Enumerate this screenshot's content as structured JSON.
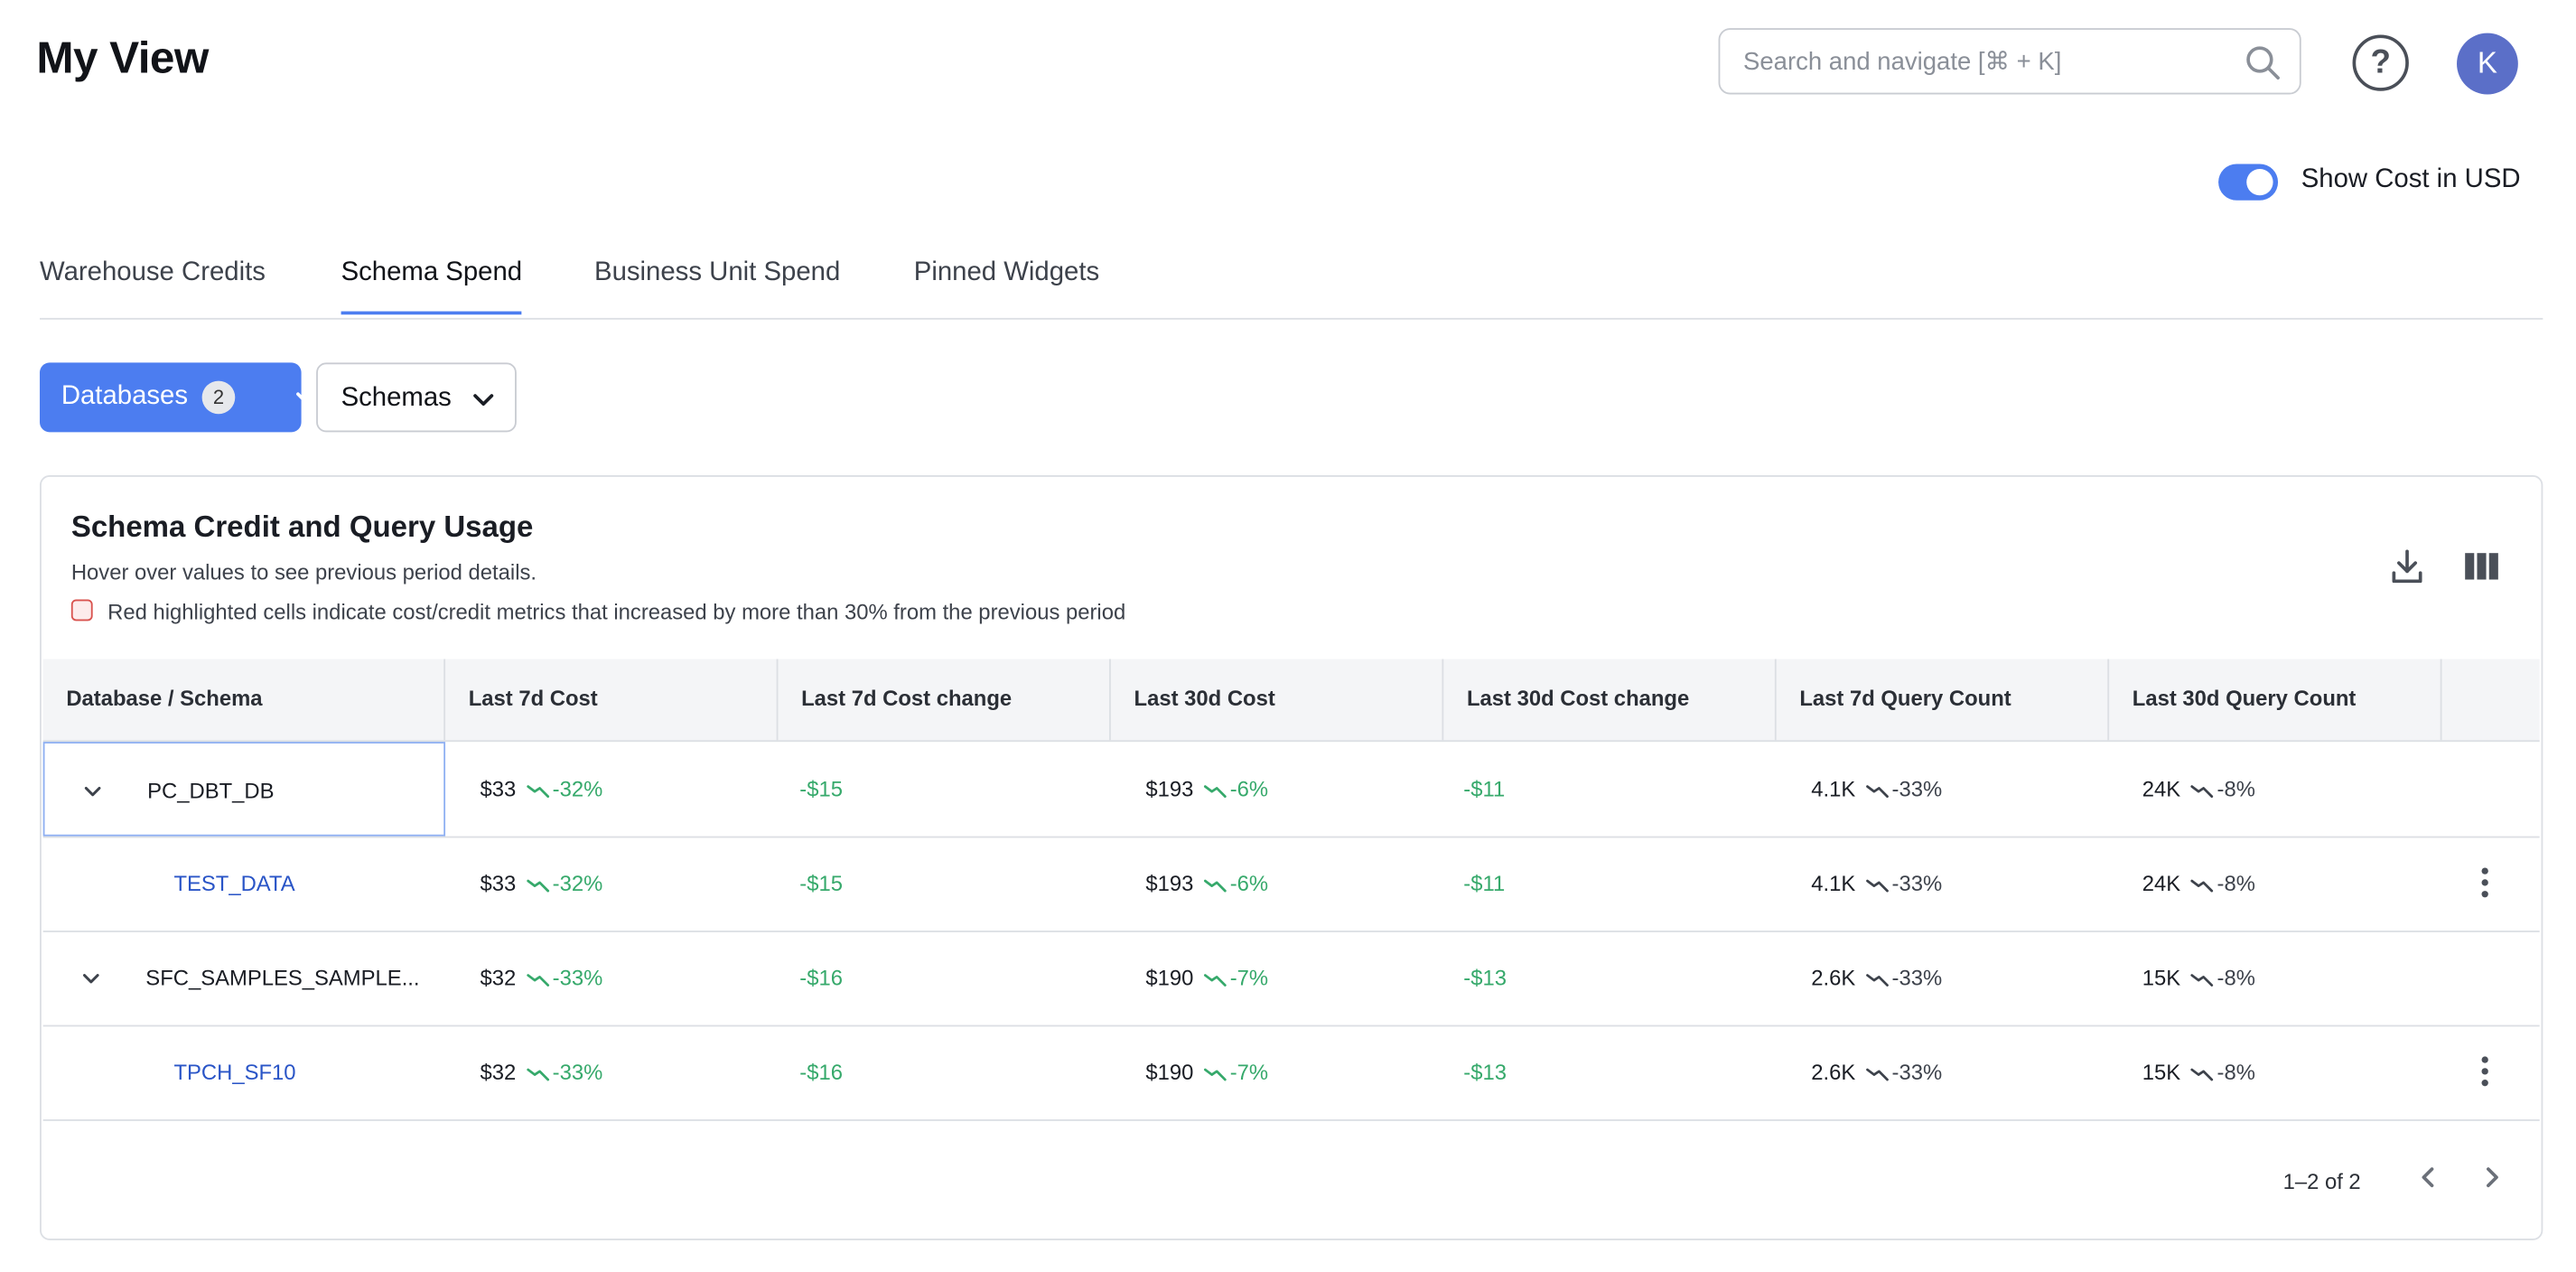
{
  "header": {
    "title": "My View",
    "search_placeholder": "Search and navigate [⌘ + K]",
    "help_label": "?",
    "avatar_initial": "K"
  },
  "toggle": {
    "label": "Show Cost in USD",
    "on": true
  },
  "tabs": [
    {
      "label": "Warehouse Credits",
      "active": false
    },
    {
      "label": "Schema Spend",
      "active": true
    },
    {
      "label": "Business Unit Spend",
      "active": false
    },
    {
      "label": "Pinned Widgets",
      "active": false
    }
  ],
  "filters": {
    "databases_label": "Databases",
    "databases_count": "2",
    "schemas_label": "Schemas"
  },
  "card": {
    "title": "Schema Credit and Query Usage",
    "subtitle": "Hover over values to see previous period details.",
    "legend": "Red highlighted cells indicate cost/credit metrics that increased by more than 30% from the previous period"
  },
  "table": {
    "columns": [
      "Database / Schema",
      "Last 7d Cost",
      "Last 7d Cost change",
      "Last 30d Cost",
      "Last 30d Cost change",
      "Last 7d Query Count",
      "Last 30d Query Count"
    ],
    "rows": [
      {
        "type": "db",
        "name": "PC_DBT_DB",
        "c7": "$33",
        "c7t": "-32%",
        "c7c": "-$15",
        "c30": "$193",
        "c30t": "-6%",
        "c30c": "-$11",
        "q7": "4.1K",
        "q7t": "-33%",
        "q30": "24K",
        "q30t": "-8%"
      },
      {
        "type": "schema",
        "name": "TEST_DATA",
        "c7": "$33",
        "c7t": "-32%",
        "c7c": "-$15",
        "c30": "$193",
        "c30t": "-6%",
        "c30c": "-$11",
        "q7": "4.1K",
        "q7t": "-33%",
        "q30": "24K",
        "q30t": "-8%"
      },
      {
        "type": "db",
        "name": "SFC_SAMPLES_SAMPLE...",
        "c7": "$32",
        "c7t": "-33%",
        "c7c": "-$16",
        "c30": "$190",
        "c30t": "-7%",
        "c30c": "-$13",
        "q7": "2.6K",
        "q7t": "-33%",
        "q30": "15K",
        "q30t": "-8%"
      },
      {
        "type": "schema",
        "name": "TPCH_SF10",
        "c7": "$32",
        "c7t": "-33%",
        "c7c": "-$16",
        "c30": "$190",
        "c30t": "-7%",
        "c30c": "-$13",
        "q7": "2.6K",
        "q7t": "-33%",
        "q30": "15K",
        "q30t": "-8%"
      }
    ]
  },
  "pagination": {
    "text": "1–2 of 2"
  },
  "icons": {
    "search": "search-icon",
    "download": "download-icon",
    "columns": "columns-icon",
    "trend": "trend-down-icon"
  }
}
